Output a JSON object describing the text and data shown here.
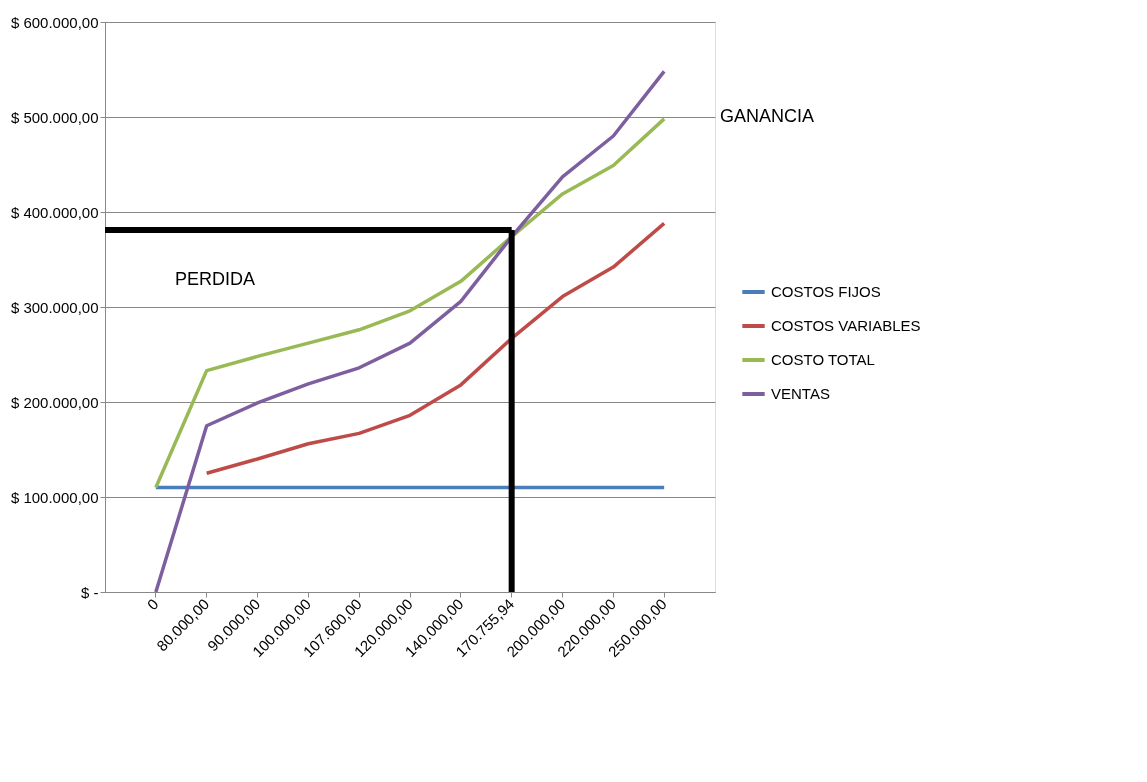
{
  "chart_data": {
    "type": "line",
    "categories": [
      "0",
      "80.000,00",
      "90.000,00",
      "100.000,00",
      "107.600,00",
      "120.000,00",
      "140.000,00",
      "170.755,94",
      "200.000,00",
      "220.000,00",
      "250.000,00"
    ],
    "series": [
      {
        "name": "COSTOS FIJOS",
        "color": "#4a7ebb",
        "values": [
          110000,
          110000,
          110000,
          110000,
          110000,
          110000,
          110000,
          110000,
          110000,
          110000,
          110000
        ]
      },
      {
        "name": "COSTOS VARIABLES",
        "color": "#be4b48",
        "values": [
          null,
          125000,
          140000,
          156000,
          167000,
          186000,
          218000,
          267000,
          311000,
          342000,
          388000
        ]
      },
      {
        "name": "COSTO TOTAL",
        "color": "#98b954",
        "values": [
          110000,
          233000,
          248000,
          262000,
          276000,
          296000,
          327000,
          374000,
          419000,
          449000,
          498000
        ]
      },
      {
        "name": "VENTAS",
        "color": "#7d5fa0",
        "values": [
          0,
          175000,
          199000,
          219000,
          236000,
          262000,
          306000,
          374000,
          437000,
          480000,
          548000
        ]
      }
    ],
    "ylim": [
      0,
      600000
    ],
    "yticks": [
      {
        "value": 0,
        "label": "$ -"
      },
      {
        "value": 100000,
        "label": "$ 100.000,00"
      },
      {
        "value": 200000,
        "label": "$ 200.000,00"
      },
      {
        "value": 300000,
        "label": "$ 300.000,00"
      },
      {
        "value": 400000,
        "label": "$ 400.000,00"
      },
      {
        "value": 500000,
        "label": "$ 500.000,00"
      },
      {
        "value": 600000,
        "label": "$ 600.000,00"
      }
    ],
    "ref_lines": [
      {
        "axis": "y",
        "value": 381000,
        "color": "#000000"
      },
      {
        "axis": "x",
        "value": "170.755,94",
        "color": "#000000"
      }
    ],
    "annotations": [
      "GANANCIA",
      "PERDIDA"
    ],
    "grid": "y",
    "legend": "right",
    "marker": "none",
    "line_style": "solid"
  }
}
